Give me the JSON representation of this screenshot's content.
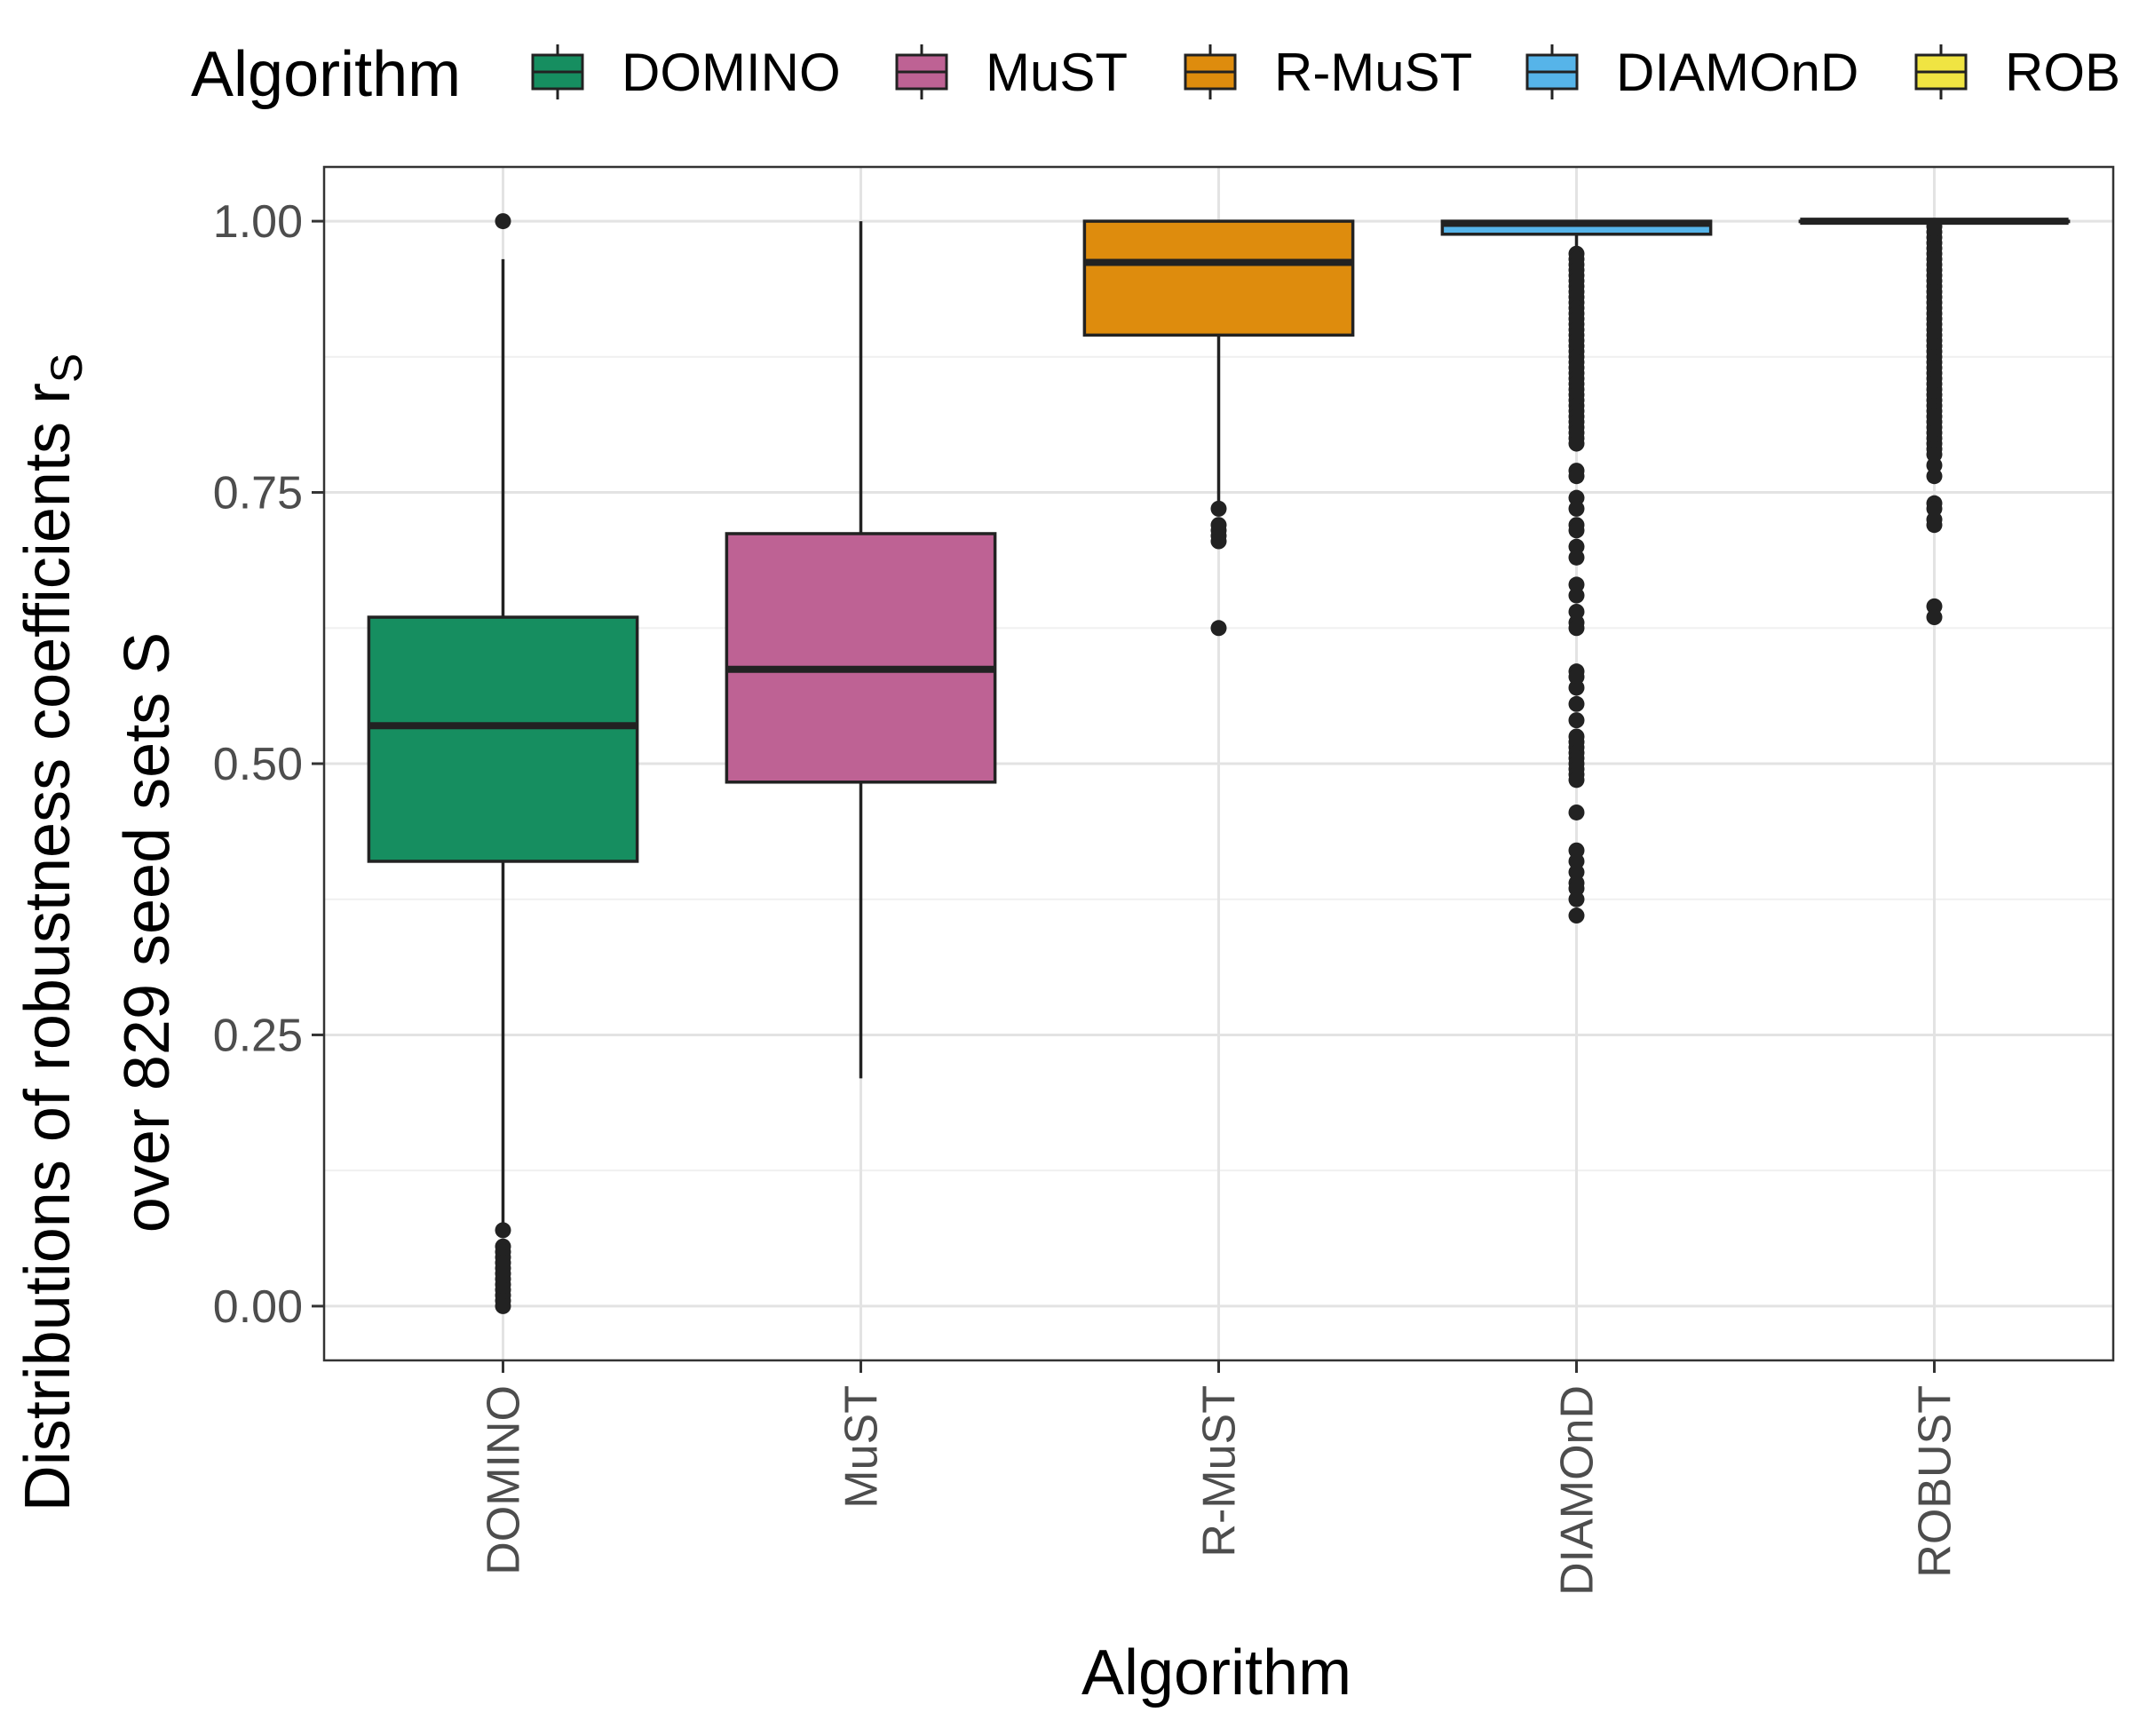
{
  "chart_data": {
    "type": "boxplot",
    "xlabel": "Algorithm",
    "ylabel": {
      "line1_main": "Distributions of robustness coefficients r",
      "line1_sub": "S",
      "line2": "over 829 seed sets S"
    },
    "ylim": [
      -0.05,
      1.05
    ],
    "yticks": [
      0.0,
      0.25,
      0.5,
      0.75,
      1.0
    ],
    "ytick_labels": [
      "0.00",
      "0.25",
      "0.50",
      "0.75",
      "1.00"
    ],
    "grid": true,
    "legend": {
      "position": "top",
      "title": "Algorithm",
      "entries": [
        "DOMINO",
        "MuST",
        "R-MuST",
        "DIAMOnD",
        "ROB"
      ]
    },
    "categories": [
      "DOMINO",
      "MuST",
      "R-MuST",
      "DIAMOnD",
      "ROBUST"
    ],
    "boxes": [
      {
        "category": "DOMINO",
        "color": "#168e60",
        "min": 0.075,
        "q1": 0.41,
        "median": 0.535,
        "q3": 0.635,
        "max": 0.965,
        "outliers": [
          1.0,
          0.07,
          0.055,
          0.05,
          0.045,
          0.04,
          0.035,
          0.03,
          0.025,
          0.02,
          0.015,
          0.01,
          0.005,
          0.0
        ]
      },
      {
        "category": "MuST",
        "color": "#be6294",
        "min": 0.21,
        "q1": 0.483,
        "median": 0.587,
        "q3": 0.712,
        "max": 1.0,
        "outliers": []
      },
      {
        "category": "R-MuST",
        "color": "#de8c0d",
        "min": 0.735,
        "q1": 0.895,
        "median": 0.962,
        "q3": 1.0,
        "max": 1.0,
        "outliers": [
          0.735,
          0.72,
          0.715,
          0.71,
          0.705,
          0.625
        ]
      },
      {
        "category": "DIAMOnD",
        "color": "#56b4e9",
        "min": 0.975,
        "q1": 0.988,
        "median": 0.998,
        "q3": 1.0,
        "max": 1.0,
        "outliers": [
          0.97,
          0.965,
          0.96,
          0.955,
          0.95,
          0.945,
          0.94,
          0.935,
          0.93,
          0.925,
          0.92,
          0.915,
          0.91,
          0.905,
          0.9,
          0.895,
          0.89,
          0.885,
          0.88,
          0.875,
          0.87,
          0.865,
          0.86,
          0.855,
          0.85,
          0.845,
          0.84,
          0.835,
          0.83,
          0.825,
          0.82,
          0.815,
          0.81,
          0.805,
          0.8,
          0.795,
          0.77,
          0.765,
          0.745,
          0.735,
          0.72,
          0.715,
          0.7,
          0.69,
          0.665,
          0.655,
          0.64,
          0.63,
          0.625,
          0.585,
          0.58,
          0.57,
          0.555,
          0.54,
          0.525,
          0.52,
          0.515,
          0.51,
          0.505,
          0.5,
          0.495,
          0.49,
          0.485,
          0.455,
          0.42,
          0.41,
          0.4,
          0.39,
          0.385,
          0.375,
          0.36
        ]
      },
      {
        "category": "ROBUST",
        "color": "#f0e442",
        "min": 1.0,
        "q1": 1.0,
        "median": 1.0,
        "q3": 1.0,
        "max": 1.0,
        "outliers": [
          0.995,
          0.99,
          0.985,
          0.98,
          0.975,
          0.97,
          0.965,
          0.96,
          0.955,
          0.95,
          0.945,
          0.94,
          0.935,
          0.93,
          0.925,
          0.92,
          0.915,
          0.91,
          0.905,
          0.9,
          0.895,
          0.89,
          0.885,
          0.88,
          0.875,
          0.87,
          0.865,
          0.86,
          0.855,
          0.85,
          0.845,
          0.84,
          0.835,
          0.83,
          0.825,
          0.82,
          0.815,
          0.81,
          0.805,
          0.8,
          0.795,
          0.79,
          0.785,
          0.775,
          0.765,
          0.74,
          0.735,
          0.725,
          0.72,
          0.645,
          0.635
        ]
      }
    ]
  }
}
